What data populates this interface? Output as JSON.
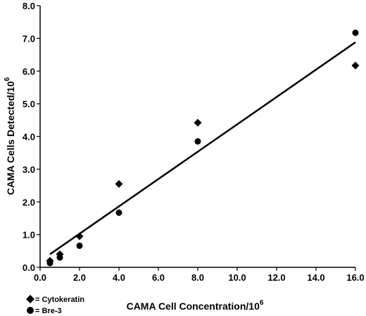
{
  "chart_data": {
    "type": "scatter",
    "xlabel": "CAMA Cell Concentration/10",
    "xlabel_sup": "6",
    "ylabel": "CAMA Cells Detected/10",
    "ylabel_sup": "6",
    "xlim": [
      0,
      16
    ],
    "ylim": [
      0,
      8
    ],
    "xticks": [
      "0.0",
      "2.0",
      "4.0",
      "6.0",
      "8.0",
      "10.0",
      "12.0",
      "14.0",
      "16.0"
    ],
    "yticks": [
      "0.0",
      "1.0",
      "2.0",
      "3.0",
      "4.0",
      "5.0",
      "6.0",
      "7.0",
      "8.0"
    ],
    "grid": false,
    "legend_position": "bottom-left",
    "series": [
      {
        "name": "Cytokeratin",
        "legend_label": "= Cytokeratin",
        "marker": "diamond",
        "x": [
          0.5,
          1.0,
          2.0,
          4.0,
          8.0,
          16.0
        ],
        "y": [
          0.2,
          0.4,
          0.95,
          2.55,
          4.42,
          6.17
        ]
      },
      {
        "name": "Bre-3",
        "legend_label": "= Bre-3",
        "marker": "circle",
        "x": [
          0.5,
          1.0,
          2.0,
          4.0,
          8.0,
          16.0
        ],
        "y": [
          0.13,
          0.3,
          0.66,
          1.67,
          3.85,
          7.17
        ]
      }
    ],
    "trendline": {
      "x": [
        0.5,
        16.0
      ],
      "y": [
        0.4,
        6.88
      ]
    }
  }
}
